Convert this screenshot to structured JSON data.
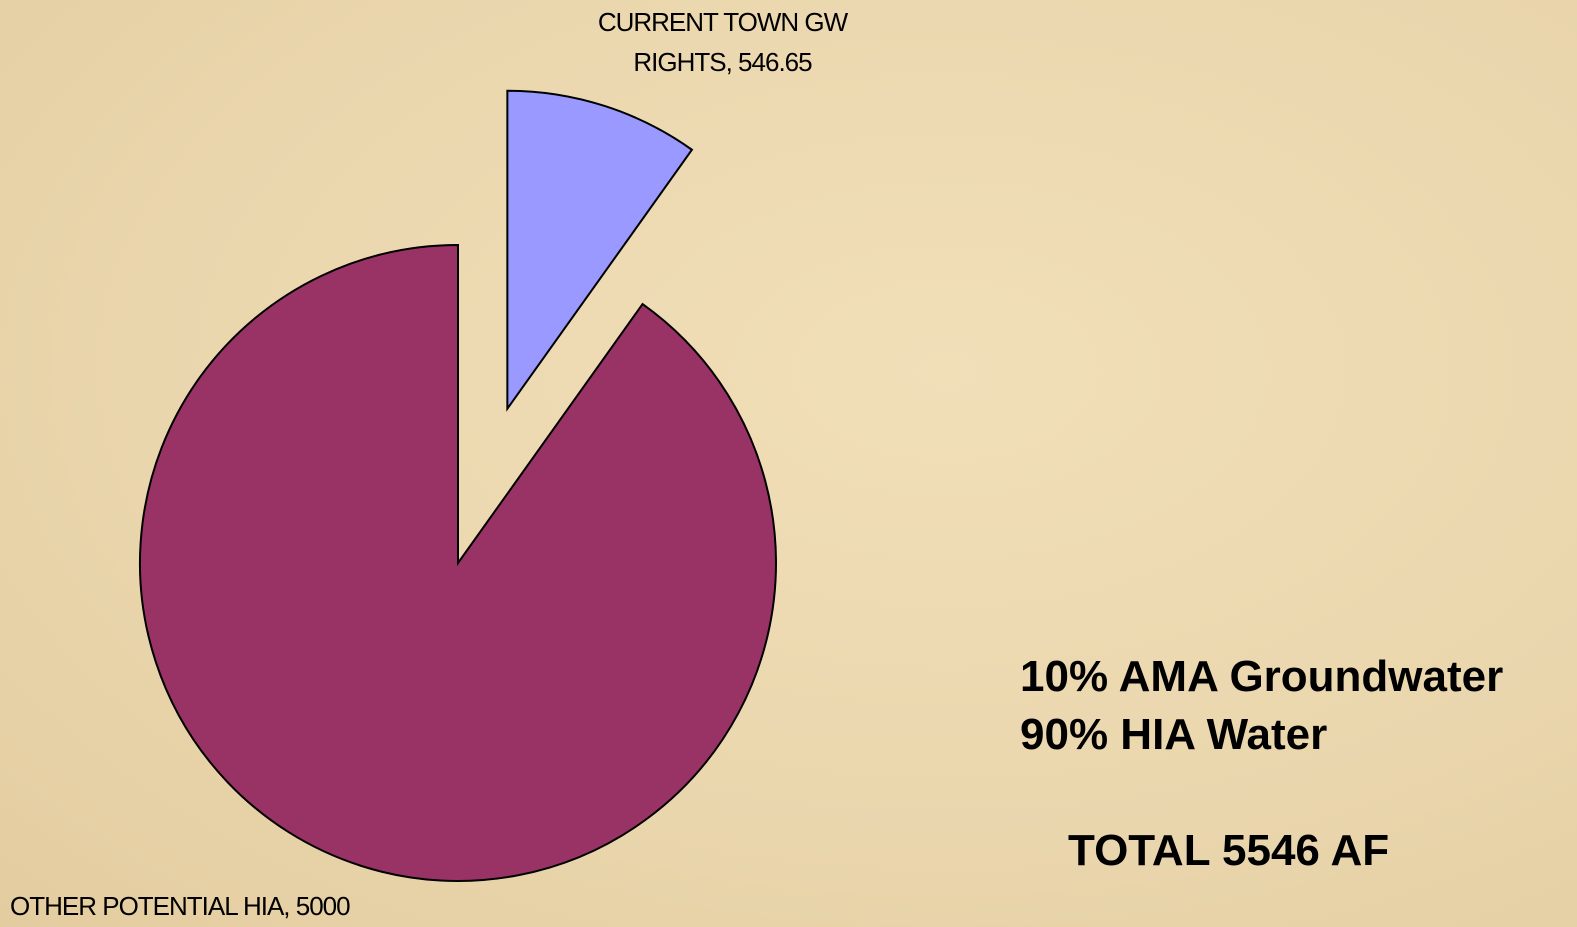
{
  "chart_data": {
    "type": "pie",
    "values": [
      546.65,
      5000
    ],
    "value_labels": [
      "CURRENT TOWN GW RIGHTS, 546.65",
      "OTHER POTENTIAL HIA, 5000"
    ],
    "colors": [
      "#9999ff",
      "#993366"
    ],
    "annotations": [
      "10% AMA Groundwater",
      "90% HIA Water",
      "TOTAL 5546 AF"
    ]
  }
}
